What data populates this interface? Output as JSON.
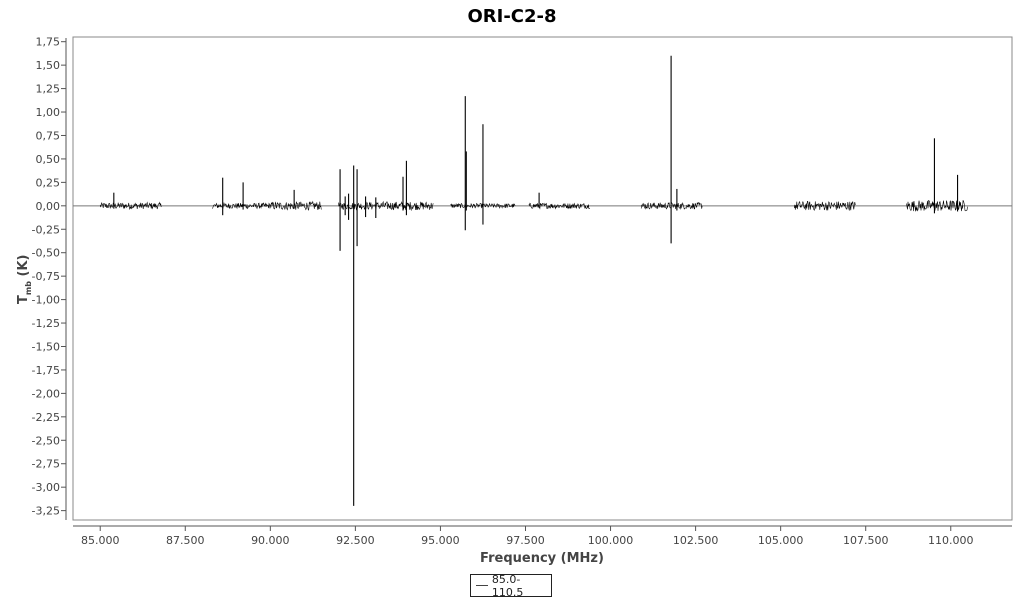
{
  "chart_data": {
    "type": "line",
    "title": "ORI-C2-8",
    "xlabel": "Frequency (MHz)",
    "ylabel": "T",
    "ylabel_sub": "mb",
    "ylabel_unit": " (K)",
    "xlim": [
      84.2,
      111.8
    ],
    "ylim": [
      -3.35,
      1.8
    ],
    "xticks": [
      85.0,
      87.5,
      90.0,
      92.5,
      95.0,
      97.5,
      100.0,
      102.5,
      105.0,
      107.5,
      110.0
    ],
    "xtick_labels": [
      "85.000",
      "87.500",
      "90.000",
      "92.500",
      "95.000",
      "97.500",
      "100.000",
      "102.500",
      "105.000",
      "107.500",
      "110.000"
    ],
    "yticks": [
      1.75,
      1.5,
      1.25,
      1.0,
      0.75,
      0.5,
      0.25,
      0.0,
      -0.25,
      -0.5,
      -0.75,
      -1.0,
      -1.25,
      -1.5,
      -1.75,
      -2.0,
      -2.25,
      -2.5,
      -2.75,
      -3.0,
      -3.25
    ],
    "ytick_labels": [
      "1,75",
      "1,50",
      "1,25",
      "1,00",
      "0,75",
      "0,50",
      "0,25",
      "0,00",
      "-0,25",
      "-0,50",
      "-0,75",
      "-1,00",
      "-1,25",
      "-1,50",
      "-1,75",
      "-2,00",
      "-2,25",
      "-2,50",
      "-2,75",
      "-3,00",
      "-3,25"
    ],
    "grid": false,
    "legend_position": "bottom-center",
    "baseline": 0.0,
    "series": [
      {
        "name": "85.0-110.5",
        "color": "#000000",
        "noise_segments": [
          {
            "x_start": 85.0,
            "x_end": 86.8,
            "noise": 0.035
          },
          {
            "x_start": 88.3,
            "x_end": 90.0,
            "noise": 0.03
          },
          {
            "x_start": 90.0,
            "x_end": 91.5,
            "noise": 0.045
          },
          {
            "x_start": 92.0,
            "x_end": 93.2,
            "noise": 0.04
          },
          {
            "x_start": 93.2,
            "x_end": 94.8,
            "noise": 0.045
          },
          {
            "x_start": 95.3,
            "x_end": 97.2,
            "noise": 0.025
          },
          {
            "x_start": 97.6,
            "x_end": 99.4,
            "noise": 0.03
          },
          {
            "x_start": 100.9,
            "x_end": 102.7,
            "noise": 0.035
          },
          {
            "x_start": 105.4,
            "x_end": 107.2,
            "noise": 0.05
          },
          {
            "x_start": 108.7,
            "x_end": 110.5,
            "noise": 0.06
          }
        ],
        "lines": [
          {
            "x": 85.4,
            "peak": 0.14,
            "dip": -0.03
          },
          {
            "x": 88.6,
            "peak": 0.3,
            "dip": -0.1
          },
          {
            "x": 89.2,
            "peak": 0.25,
            "dip": -0.04
          },
          {
            "x": 90.7,
            "peak": 0.17,
            "dip": -0.03
          },
          {
            "x": 92.05,
            "peak": 0.39,
            "dip": -0.48
          },
          {
            "x": 92.2,
            "peak": 0.1,
            "dip": -0.1
          },
          {
            "x": 92.3,
            "peak": 0.13,
            "dip": -0.15
          },
          {
            "x": 92.45,
            "peak": 0.43,
            "dip": -3.2
          },
          {
            "x": 92.55,
            "peak": 0.39,
            "dip": -0.43
          },
          {
            "x": 92.8,
            "peak": 0.1,
            "dip": -0.12
          },
          {
            "x": 93.1,
            "peak": 0.09,
            "dip": -0.13
          },
          {
            "x": 93.9,
            "peak": 0.31,
            "dip": -0.05
          },
          {
            "x": 94.0,
            "peak": 0.48,
            "dip": -0.1
          },
          {
            "x": 95.73,
            "peak": 1.17,
            "dip": -0.26
          },
          {
            "x": 95.76,
            "peak": 0.58,
            "dip": -0.05
          },
          {
            "x": 96.25,
            "peak": 0.87,
            "dip": -0.2
          },
          {
            "x": 97.9,
            "peak": 0.14,
            "dip": -0.02
          },
          {
            "x": 101.78,
            "peak": 1.6,
            "dip": -0.4
          },
          {
            "x": 101.95,
            "peak": 0.18,
            "dip": -0.05
          },
          {
            "x": 109.52,
            "peak": 0.72,
            "dip": -0.08
          },
          {
            "x": 110.2,
            "peak": 0.33,
            "dip": -0.06
          }
        ]
      }
    ]
  }
}
